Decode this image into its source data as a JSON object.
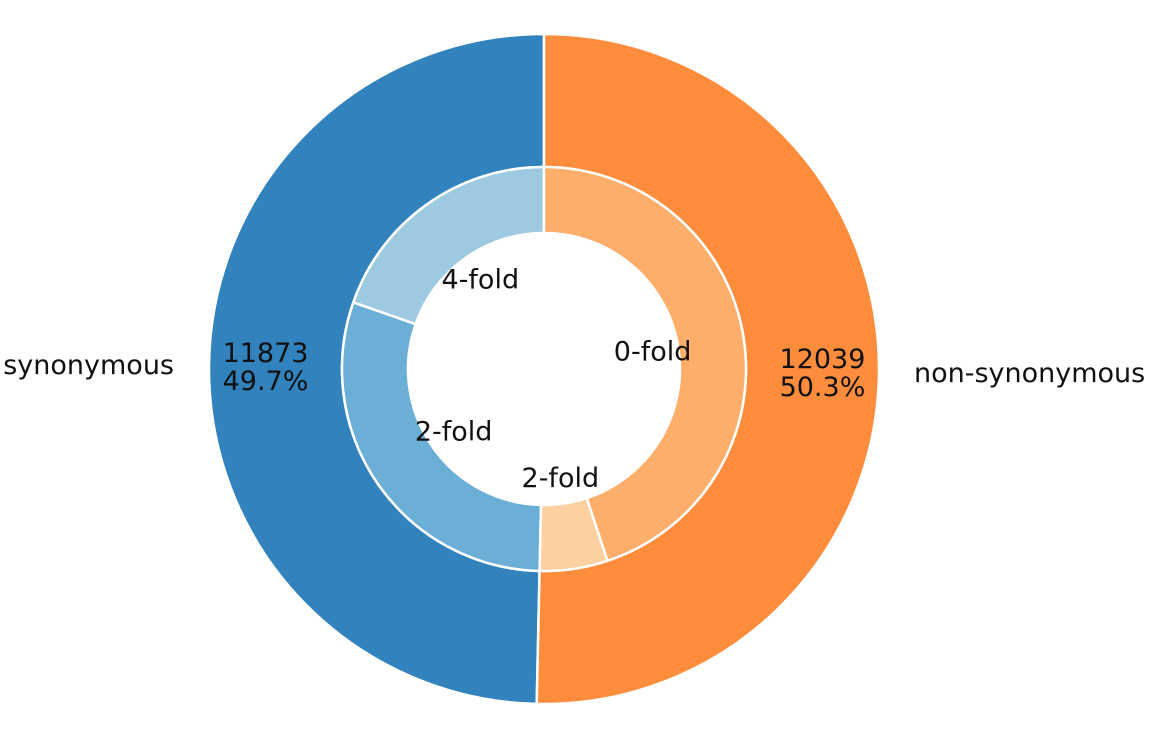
{
  "chart_data": {
    "type": "pie",
    "subtype": "nested-donut",
    "outer": [
      {
        "label": "synonymous",
        "value": 11873,
        "count_label": "11873",
        "percent_label": "49.7%",
        "color": "#3182bd"
      },
      {
        "label": "non-synonymous",
        "value": 12039,
        "count_label": "12039",
        "percent_label": "50.3%",
        "color": "#fd8d3c"
      }
    ],
    "inner": [
      {
        "label": "4-fold",
        "value": 4700,
        "color": "#9ecae1",
        "parent": "synonymous"
      },
      {
        "label": "2-fold",
        "value": 7173,
        "color": "#6baed6",
        "parent": "synonymous"
      },
      {
        "label": "2-fold",
        "value": 1300,
        "color": "#fdd0a2",
        "parent": "non-synonymous"
      },
      {
        "label": "0-fold",
        "value": 10739,
        "color": "#fdae6b",
        "parent": "non-synonymous"
      }
    ],
    "direction": "counterclockwise",
    "edge_color": "#ffffff"
  }
}
